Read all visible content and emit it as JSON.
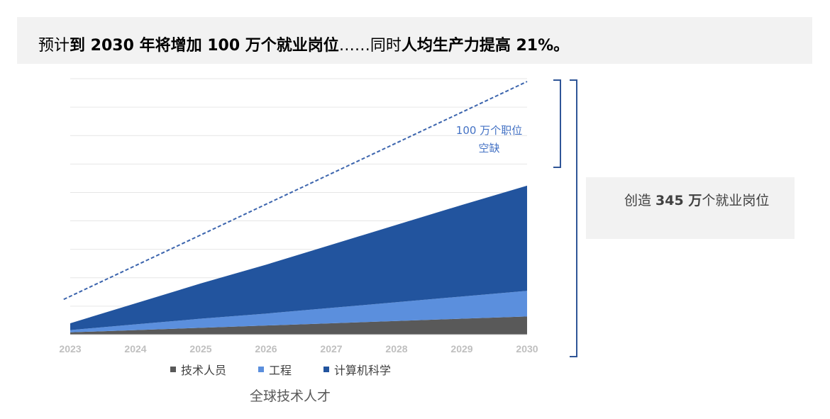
{
  "header": {
    "part1": "预计",
    "part2": "到 2030 年将增加 100 万个就业岗位",
    "part3": "……同时",
    "part4": "人均生产力提高 21%。"
  },
  "gap_label": {
    "line1": "100 万个职位",
    "line2": "空缺"
  },
  "side_box": {
    "prefix": "创造 ",
    "bold": "345 万",
    "suffix": "个就业岗位"
  },
  "caption": "全球技术人才",
  "colors": {
    "technician": "#595959",
    "engineering": "#5b8fdd",
    "computer_science": "#22549e",
    "dashed_line": "#3b64ad",
    "bracket": "#2f5597"
  },
  "chart_data": {
    "type": "area",
    "stacked": true,
    "x": [
      "2023",
      "2024",
      "2025",
      "2026",
      "2027",
      "2028",
      "2029",
      "2030"
    ],
    "series": [
      {
        "name": "技术人员",
        "values": [
          0.04,
          0.08,
          0.12,
          0.16,
          0.2,
          0.24,
          0.28,
          0.32
        ]
      },
      {
        "name": "工程",
        "values": [
          0.04,
          0.1,
          0.16,
          0.21,
          0.27,
          0.33,
          0.39,
          0.45
        ]
      },
      {
        "name": "计算机科学",
        "values": [
          0.12,
          0.37,
          0.62,
          0.86,
          1.11,
          1.36,
          1.61,
          1.85
        ]
      }
    ],
    "dashed_total": {
      "x_start": 2022.9,
      "y_start": 0.62,
      "x_end": 2030,
      "y_end": 4.45
    },
    "ylim": [
      0,
      4.5
    ],
    "yaxis_labels_visible": false,
    "grid": true,
    "legend_position": "bottom",
    "annotations": [
      "100 万个职位空缺",
      "创造 345 万个就业岗位"
    ]
  }
}
